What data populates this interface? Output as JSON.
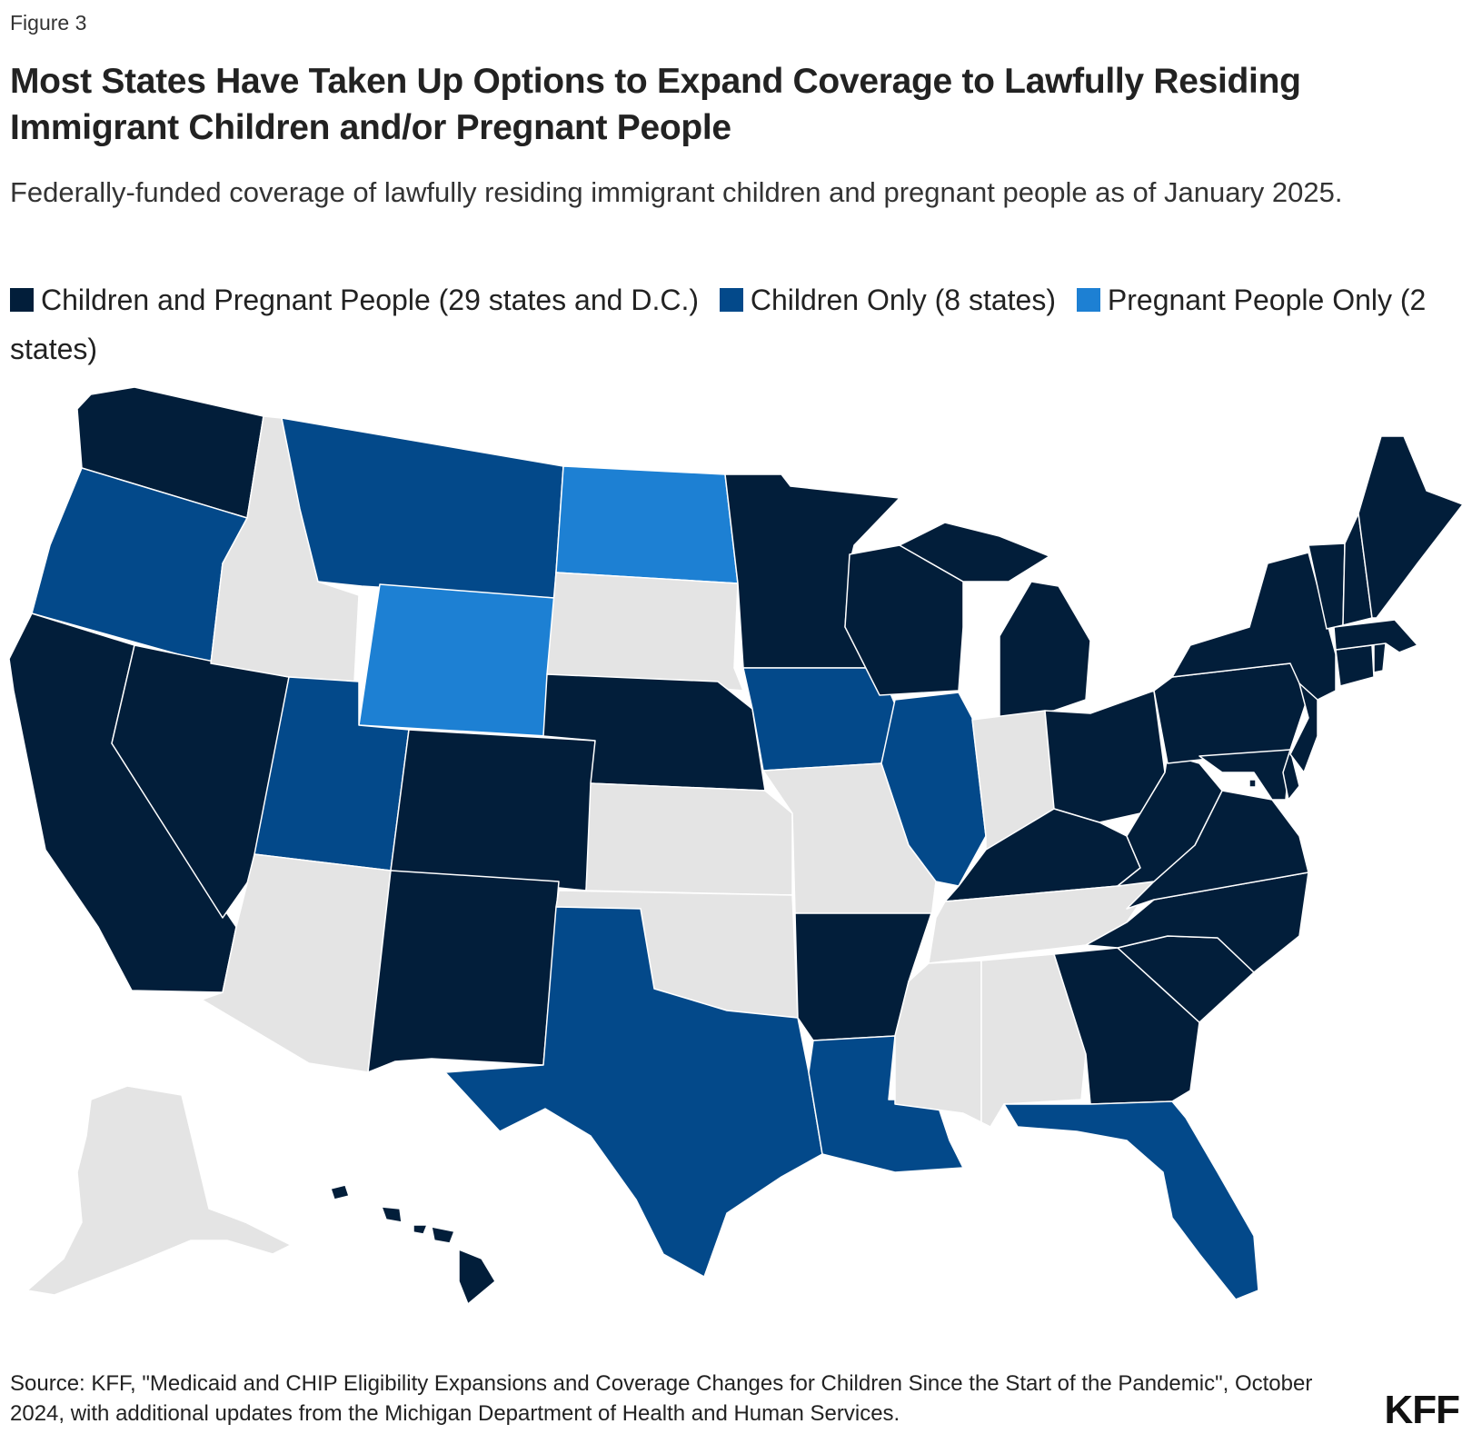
{
  "figure_label": "Figure 3",
  "title": "Most States Have Taken Up Options to Expand Coverage to Lawfully Residing Immigrant Children and/or Pregnant People",
  "subtitle": "Federally-funded coverage of lawfully residing immigrant children and pregnant people as of January 2025.",
  "legend": [
    {
      "label": "Children and Pregnant People (29 states and D.C.)",
      "color": "#021e3a"
    },
    {
      "label": "Children Only (8 states)",
      "color": "#03498a"
    },
    {
      "label": "Pregnant People Only (2 states)",
      "color": "#1d80d3"
    }
  ],
  "colors": {
    "both": "#021e3a",
    "children": "#03498a",
    "pregnant": "#1d80d3",
    "none": "#e4e4e4"
  },
  "states": {
    "WA": "both",
    "OR": "children",
    "CA": "both",
    "NV": "both",
    "ID": "none",
    "MT": "children",
    "WY": "pregnant",
    "UT": "children",
    "AZ": "none",
    "CO": "both",
    "NM": "both",
    "ND": "pregnant",
    "SD": "none",
    "NE": "both",
    "KS": "none",
    "OK": "none",
    "TX": "children",
    "MN": "both",
    "IA": "children",
    "MO": "none",
    "AR": "both",
    "LA": "children",
    "WI": "both",
    "IL": "children",
    "MI": "both",
    "IN": "none",
    "OH": "both",
    "KY": "both",
    "TN": "none",
    "MS": "none",
    "AL": "none",
    "GA": "both",
    "FL": "children",
    "SC": "both",
    "NC": "both",
    "VA": "both",
    "WV": "both",
    "MD": "both",
    "DE": "both",
    "PA": "both",
    "NJ": "both",
    "NY": "both",
    "CT": "both",
    "RI": "both",
    "MA": "both",
    "VT": "both",
    "NH": "both",
    "ME": "both",
    "DC": "both",
    "AK": "none",
    "HI": "both"
  },
  "source": "Source: KFF, \"Medicaid and CHIP Eligibility Expansions and Coverage Changes for Children Since the Start of the Pandemic\", October 2024, with additional updates from the Michigan Department of Health and Human Services.",
  "logo": "KFF"
}
